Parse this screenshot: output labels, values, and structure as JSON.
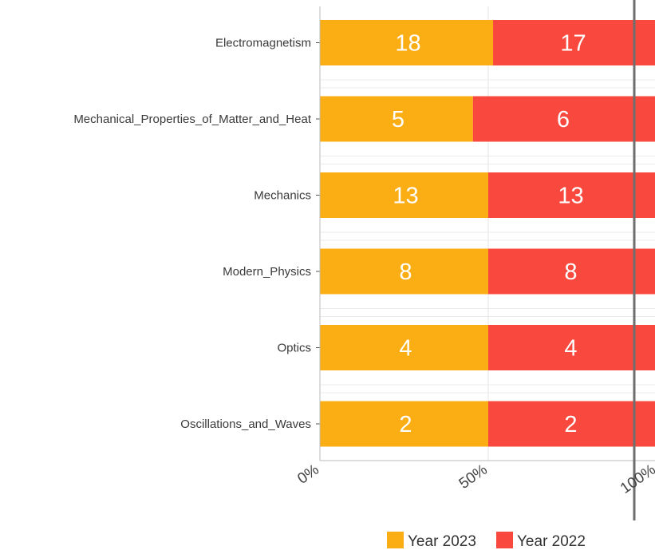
{
  "chart_data": {
    "type": "bar",
    "orientation": "horizontal",
    "stacked": "percent",
    "categories": [
      "Electromagnetism",
      "Mechanical_Properties_of_Matter_and_Heat",
      "Mechanics",
      "Modern_Physics",
      "Optics",
      "Oscillations_and_Waves"
    ],
    "series": [
      {
        "name": "Year 2023",
        "color": "#fbad14",
        "values": [
          18,
          5,
          13,
          8,
          4,
          2
        ]
      },
      {
        "name": "Year 2022",
        "color": "#f9493e",
        "values": [
          17,
          6,
          13,
          8,
          4,
          2
        ]
      }
    ],
    "x_ticks": [
      "0%",
      "50%",
      "100%"
    ],
    "xlim": [
      0,
      1
    ],
    "grid": true,
    "legend_position": "bottom"
  }
}
